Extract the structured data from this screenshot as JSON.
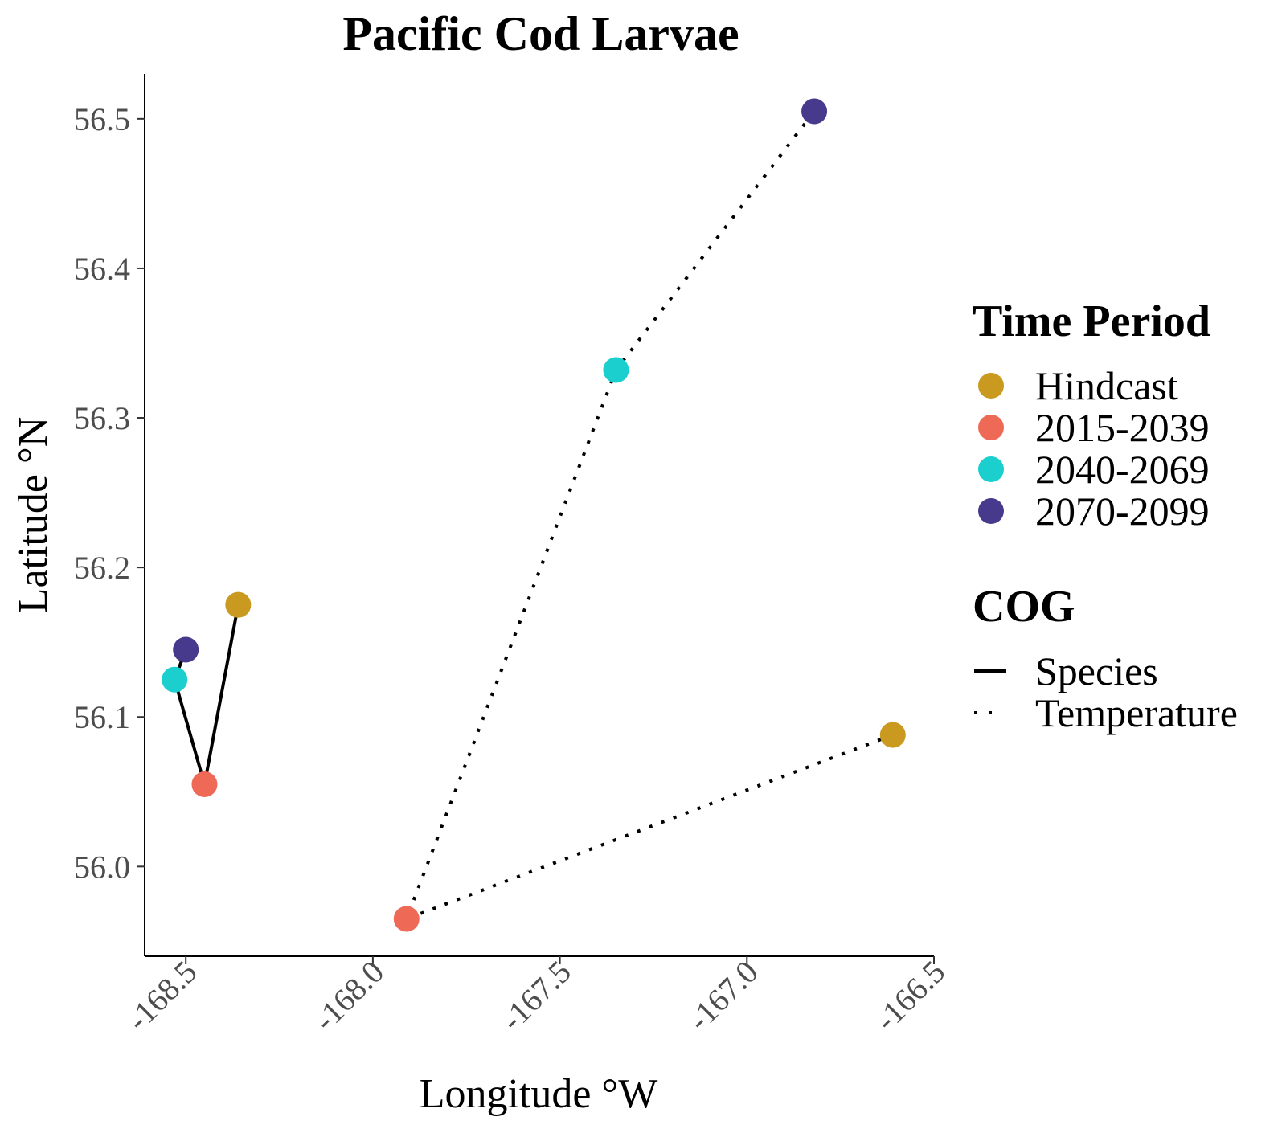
{
  "chart_data": {
    "type": "scatter",
    "title": "Pacific Cod Larvae",
    "xlabel": "Longitude °W",
    "ylabel": "Latitude °N",
    "xlim": [
      -168.61,
      -166.5
    ],
    "ylim": [
      55.94,
      56.53
    ],
    "x_ticks": [
      "-168.5",
      "-168.0",
      "-167.5",
      "-167.0",
      "-166.5"
    ],
    "y_ticks": [
      "56.0",
      "56.1",
      "56.2",
      "56.3",
      "56.4",
      "56.5"
    ],
    "grid": false,
    "legend_position": "right",
    "legend": {
      "color_title": "Time Period",
      "periods": [
        {
          "label": "Hindcast",
          "color": "#C99A1F"
        },
        {
          "label": "2015-2039",
          "color": "#EE6A57"
        },
        {
          "label": "2040-2069",
          "color": "#1BCFCF"
        },
        {
          "label": "2070-2099",
          "color": "#473A8C"
        }
      ],
      "linetype_title": "COG",
      "linetypes": [
        {
          "label": "Species",
          "style": "solid"
        },
        {
          "label": "Temperature",
          "style": "dotted"
        }
      ]
    },
    "series": [
      {
        "name": "Species",
        "style": "solid",
        "points": [
          {
            "period": "Hindcast",
            "x": -168.36,
            "y": 56.175
          },
          {
            "period": "2015-2039",
            "x": -168.45,
            "y": 56.055
          },
          {
            "period": "2040-2069",
            "x": -168.53,
            "y": 56.125
          },
          {
            "period": "2070-2099",
            "x": -168.5,
            "y": 56.145
          }
        ]
      },
      {
        "name": "Temperature",
        "style": "dotted",
        "points": [
          {
            "period": "Hindcast",
            "x": -166.61,
            "y": 56.088
          },
          {
            "period": "2015-2039",
            "x": -167.91,
            "y": 55.965
          },
          {
            "period": "2040-2069",
            "x": -167.35,
            "y": 56.332
          },
          {
            "period": "2070-2099",
            "x": -166.82,
            "y": 56.505
          }
        ]
      }
    ]
  }
}
